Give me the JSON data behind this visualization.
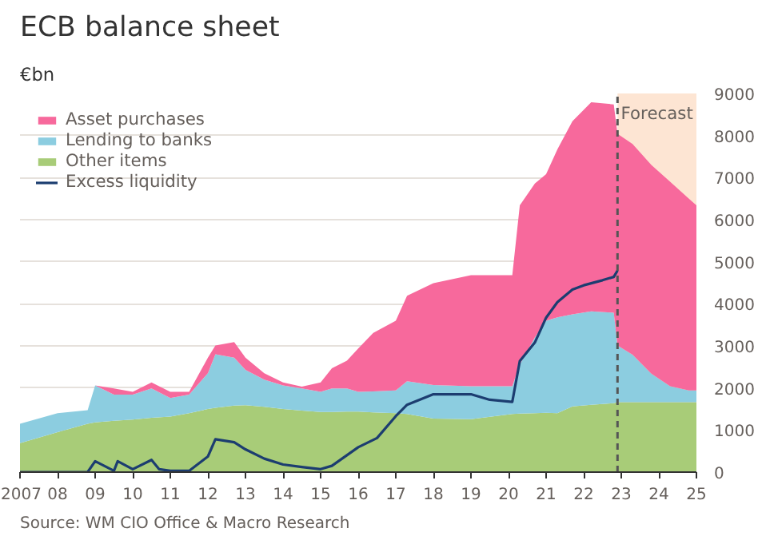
{
  "chart_data": {
    "type": "area",
    "stacked": true,
    "title": "ECB balance sheet",
    "subtitle": "€bn",
    "x": [
      2007,
      2008,
      2008.8,
      2009,
      2009.5,
      2010,
      2010.5,
      2011,
      2011.5,
      2012,
      2012.2,
      2012.7,
      2013,
      2013.5,
      2014,
      2014.5,
      2015,
      2015.3,
      2015.7,
      2016,
      2016.4,
      2017,
      2017.3,
      2018,
      2019,
      2020.1,
      2020.3,
      2020.7,
      2021,
      2021.3,
      2021.7,
      2022.2,
      2022.8,
      2022.9,
      2023.3,
      2023.8,
      2024.3,
      2024.8,
      2025
    ],
    "series": [
      {
        "name": "Other items",
        "color": "#a8cc78",
        "values": [
          690,
          950,
          1150,
          1180,
          1220,
          1250,
          1290,
          1320,
          1400,
          1500,
          1530,
          1580,
          1590,
          1550,
          1500,
          1460,
          1430,
          1430,
          1440,
          1440,
          1420,
          1400,
          1380,
          1270,
          1260,
          1380,
          1390,
          1400,
          1410,
          1400,
          1560,
          1600,
          1640,
          1660,
          1660,
          1660,
          1660,
          1660,
          1660
        ]
      },
      {
        "name": "Lending to banks",
        "color": "#8ccde0",
        "values": [
          460,
          450,
          320,
          880,
          620,
          590,
          700,
          440,
          440,
          850,
          1270,
          1140,
          840,
          650,
          560,
          530,
          480,
          560,
          550,
          470,
          500,
          540,
          780,
          800,
          780,
          660,
          1170,
          1800,
          2190,
          2280,
          2190,
          2220,
          2150,
          1350,
          1130,
          680,
          380,
          280,
          280
        ]
      },
      {
        "name": "Asset purchases",
        "color": "#f7699c",
        "values": [
          0,
          0,
          0,
          0,
          150,
          70,
          140,
          150,
          70,
          370,
          210,
          370,
          290,
          150,
          70,
          40,
          220,
          480,
          660,
          1030,
          1390,
          1660,
          2030,
          2420,
          2640,
          2640,
          3780,
          3660,
          3480,
          3990,
          4590,
          4970,
          4950,
          5030,
          5010,
          4960,
          4860,
          4560,
          4400
        ]
      },
      {
        "name": "Excess liquidity",
        "type": "line",
        "color": "#1c3d70",
        "x": [
          2007,
          2008,
          2008.8,
          2009,
          2009.5,
          2009.6,
          2010,
          2010.5,
          2010.7,
          2011,
          2011.5,
          2012,
          2012.2,
          2012.7,
          2013,
          2013.5,
          2014,
          2014.5,
          2015,
          2015.3,
          2016,
          2016.5,
          2017,
          2017.3,
          2018,
          2019,
          2019.5,
          2020.1,
          2020.3,
          2020.7,
          2021,
          2021.3,
          2021.7,
          2022,
          2022.5,
          2022.8,
          2022.9
        ],
        "values": [
          0,
          0,
          0,
          260,
          30,
          260,
          70,
          290,
          70,
          30,
          30,
          370,
          780,
          710,
          540,
          320,
          180,
          120,
          70,
          150,
          590,
          810,
          1330,
          1600,
          1850,
          1850,
          1720,
          1670,
          2640,
          3080,
          3670,
          4040,
          4340,
          4440,
          4560,
          4640,
          4790
        ]
      }
    ],
    "xlim": [
      2007,
      2025
    ],
    "xticks": [
      {
        "value": 2007,
        "label": "2007"
      },
      {
        "value": 2008,
        "label": "08"
      },
      {
        "value": 2009,
        "label": "09"
      },
      {
        "value": 2010,
        "label": "10"
      },
      {
        "value": 2011,
        "label": "11"
      },
      {
        "value": 2012,
        "label": "12"
      },
      {
        "value": 2013,
        "label": "13"
      },
      {
        "value": 2014,
        "label": "14"
      },
      {
        "value": 2015,
        "label": "15"
      },
      {
        "value": 2016,
        "label": "16"
      },
      {
        "value": 2017,
        "label": "17"
      },
      {
        "value": 2018,
        "label": "18"
      },
      {
        "value": 2019,
        "label": "19"
      },
      {
        "value": 2020,
        "label": "20"
      },
      {
        "value": 2021,
        "label": "21"
      },
      {
        "value": 2022,
        "label": "22"
      },
      {
        "value": 2023,
        "label": "23"
      },
      {
        "value": 2024,
        "label": "24"
      },
      {
        "value": 2025,
        "label": "25"
      }
    ],
    "ylim": [
      0,
      9000
    ],
    "yticks": [
      0,
      1000,
      2000,
      3000,
      4000,
      5000,
      6000,
      7000,
      8000,
      9000
    ],
    "grid": "y",
    "legend": "top left",
    "bands": [
      {
        "axis": "x",
        "from": 2022.9,
        "to": 2025,
        "label": "Forecast",
        "color": "#fde5d3"
      }
    ],
    "ref_lines": [
      {
        "axis": "x",
        "value": 2022.9,
        "line_style": "dashed",
        "color": "#555555"
      }
    ],
    "annotations": [
      "Source: WM CIO Office & Macro Research"
    ]
  }
}
